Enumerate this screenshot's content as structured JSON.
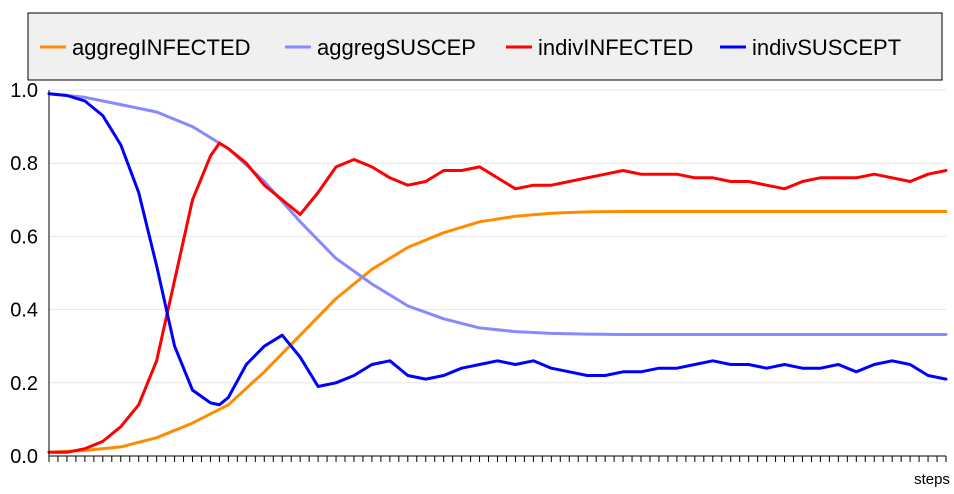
{
  "chart_data": {
    "type": "line",
    "xlabel": "steps",
    "ylim": [
      0,
      1
    ],
    "yticks": [
      "0.0",
      "0.2",
      "0.4",
      "0.6",
      "0.8",
      "1.0"
    ],
    "xlim": [
      0,
      100
    ],
    "xtick_count": 101,
    "grid": true,
    "legend_position": "top",
    "series": [
      {
        "name": "aggregINFECTED",
        "color": "#ff8c00",
        "x": [
          0,
          4,
          8,
          12,
          16,
          20,
          24,
          28,
          32,
          36,
          40,
          44,
          48,
          52,
          56,
          60,
          64,
          68,
          72,
          76,
          80,
          84,
          88,
          92,
          96,
          100
        ],
        "values": [
          0.01,
          0.015,
          0.025,
          0.05,
          0.09,
          0.14,
          0.23,
          0.33,
          0.43,
          0.51,
          0.57,
          0.61,
          0.64,
          0.655,
          0.663,
          0.667,
          0.668,
          0.668,
          0.668,
          0.668,
          0.668,
          0.668,
          0.668,
          0.668,
          0.668,
          0.668
        ]
      },
      {
        "name": "aggregSUSCEP",
        "color": "#8888ff",
        "x": [
          0,
          4,
          8,
          12,
          16,
          20,
          24,
          28,
          32,
          36,
          40,
          44,
          48,
          52,
          56,
          60,
          64,
          68,
          72,
          76,
          80,
          84,
          88,
          92,
          96,
          100
        ],
        "values": [
          0.99,
          0.98,
          0.96,
          0.94,
          0.9,
          0.84,
          0.75,
          0.64,
          0.54,
          0.47,
          0.41,
          0.375,
          0.35,
          0.34,
          0.335,
          0.333,
          0.332,
          0.332,
          0.332,
          0.332,
          0.332,
          0.332,
          0.332,
          0.332,
          0.332,
          0.332
        ]
      },
      {
        "name": "indivINFECTED",
        "color": "#ff0000",
        "x": [
          0,
          2,
          4,
          6,
          8,
          10,
          12,
          14,
          16,
          18,
          19,
          20,
          22,
          24,
          26,
          28,
          30,
          32,
          34,
          36,
          38,
          40,
          42,
          44,
          46,
          48,
          50,
          52,
          54,
          56,
          58,
          60,
          62,
          64,
          66,
          68,
          70,
          72,
          74,
          76,
          78,
          80,
          82,
          84,
          86,
          88,
          90,
          92,
          94,
          96,
          98,
          100
        ],
        "values": [
          0.01,
          0.01,
          0.02,
          0.04,
          0.08,
          0.14,
          0.26,
          0.48,
          0.7,
          0.82,
          0.855,
          0.84,
          0.8,
          0.74,
          0.7,
          0.66,
          0.72,
          0.79,
          0.81,
          0.79,
          0.76,
          0.74,
          0.75,
          0.78,
          0.78,
          0.79,
          0.76,
          0.73,
          0.74,
          0.74,
          0.75,
          0.76,
          0.77,
          0.78,
          0.77,
          0.77,
          0.77,
          0.76,
          0.76,
          0.75,
          0.75,
          0.74,
          0.73,
          0.75,
          0.76,
          0.76,
          0.76,
          0.77,
          0.76,
          0.75,
          0.77,
          0.78
        ]
      },
      {
        "name": "indivSUSCEPT",
        "color": "#0000ff",
        "x": [
          0,
          2,
          4,
          6,
          8,
          10,
          12,
          14,
          16,
          18,
          19,
          20,
          22,
          24,
          26,
          28,
          30,
          32,
          34,
          36,
          38,
          40,
          42,
          44,
          46,
          48,
          50,
          52,
          54,
          56,
          58,
          60,
          62,
          64,
          66,
          68,
          70,
          72,
          74,
          76,
          78,
          80,
          82,
          84,
          86,
          88,
          90,
          92,
          94,
          96,
          98,
          100
        ],
        "values": [
          0.99,
          0.985,
          0.97,
          0.93,
          0.85,
          0.72,
          0.52,
          0.3,
          0.18,
          0.145,
          0.14,
          0.16,
          0.25,
          0.3,
          0.33,
          0.27,
          0.19,
          0.2,
          0.22,
          0.25,
          0.26,
          0.22,
          0.21,
          0.22,
          0.24,
          0.25,
          0.26,
          0.25,
          0.26,
          0.24,
          0.23,
          0.22,
          0.22,
          0.23,
          0.23,
          0.24,
          0.24,
          0.25,
          0.26,
          0.25,
          0.25,
          0.24,
          0.25,
          0.24,
          0.24,
          0.25,
          0.23,
          0.25,
          0.26,
          0.25,
          0.22,
          0.21
        ]
      }
    ]
  }
}
